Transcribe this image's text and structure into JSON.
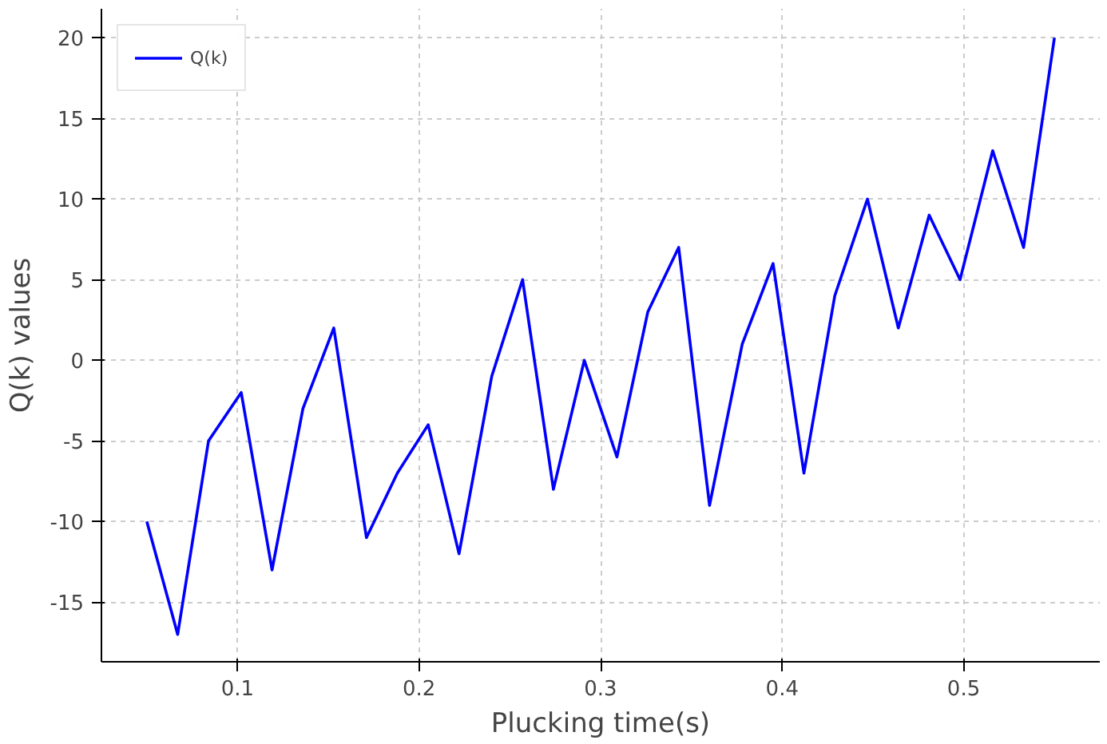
{
  "chart_data": {
    "type": "line",
    "xlabel": "Plucking time(s)",
    "ylabel": "Q(k) values",
    "x": [
      0.05,
      0.067,
      0.084,
      0.102,
      0.119,
      0.136,
      0.153,
      0.171,
      0.188,
      0.205,
      0.222,
      0.24,
      0.257,
      0.274,
      0.291,
      0.309,
      0.326,
      0.343,
      0.36,
      0.378,
      0.395,
      0.412,
      0.429,
      0.447,
      0.464,
      0.481,
      0.498,
      0.516,
      0.533,
      0.55
    ],
    "series": [
      {
        "name": "Q(k)",
        "color": "#0000ff",
        "values": [
          -10,
          -17,
          -5,
          -2,
          -13,
          -3,
          2,
          -11,
          -7,
          -4,
          -12,
          -1,
          5,
          -8,
          0,
          -6,
          3,
          7,
          -9,
          1,
          6,
          -7,
          4,
          10,
          2,
          9,
          5,
          13,
          7,
          20
        ]
      }
    ],
    "xlim": [
      0.025,
      0.575
    ],
    "ylim": [
      -18.7,
      21.8
    ],
    "xticks": [
      0.1,
      0.2,
      0.3,
      0.4,
      0.5
    ],
    "yticks": [
      -15,
      -10,
      -5,
      0,
      5,
      10,
      15,
      20
    ],
    "grid": true,
    "legend": "top left",
    "marker": "none",
    "line_style": "solid"
  }
}
